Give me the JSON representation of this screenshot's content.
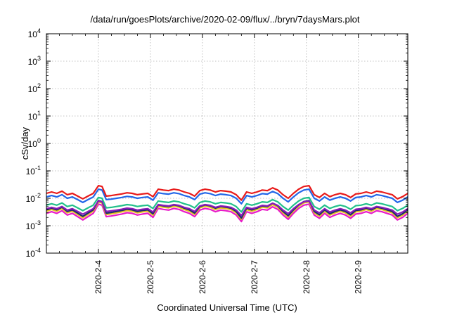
{
  "chart_data": {
    "type": "line",
    "title": "/data/run/goesPlots/archive/2020-02-09/flux/../bryn/7daysMars.plot",
    "xlabel": "Coordinated Universal Time (UTC)",
    "ylabel": "cSv/day",
    "yscale": "log",
    "ylim": [
      0.0001,
      10000
    ],
    "xlim_days": [
      3.0,
      9.95
    ],
    "x_tick_labels": [
      "2020-2-4",
      "2020-2-5",
      "2020-2-6",
      "2020-2-7",
      "2020-2-8",
      "2020-2-9"
    ],
    "x_ticks": [
      4,
      5,
      6,
      7,
      8,
      9
    ],
    "y_tick_labels": [
      {
        "base": "10",
        "exp": "-4",
        "value": -4
      },
      {
        "base": "10",
        "exp": "-3",
        "value": -3
      },
      {
        "base": "10",
        "exp": "-2",
        "value": -2
      },
      {
        "base": "10",
        "exp": "-1",
        "value": -1
      },
      {
        "base": "10",
        "exp": "0",
        "value": 0
      },
      {
        "base": "10",
        "exp": "1",
        "value": 1
      },
      {
        "base": "10",
        "exp": "2",
        "value": 2
      },
      {
        "base": "10",
        "exp": "3",
        "value": 3
      },
      {
        "base": "10",
        "exp": "4",
        "value": 4
      }
    ],
    "grid": true,
    "series_shape": {
      "x": [
        3.0,
        3.1,
        3.2,
        3.3,
        3.4,
        3.5,
        3.6,
        3.7,
        3.8,
        3.9,
        4.0,
        4.07,
        4.15,
        4.25,
        4.35,
        4.45,
        4.55,
        4.65,
        4.75,
        4.85,
        4.95,
        5.05,
        5.15,
        5.25,
        5.35,
        5.45,
        5.55,
        5.65,
        5.75,
        5.85,
        5.95,
        6.05,
        6.15,
        6.25,
        6.35,
        6.45,
        6.55,
        6.65,
        6.75,
        6.85,
        6.95,
        7.05,
        7.15,
        7.25,
        7.35,
        7.45,
        7.55,
        7.65,
        7.75,
        7.85,
        7.95,
        8.05,
        8.15,
        8.25,
        8.35,
        8.45,
        8.55,
        8.65,
        8.75,
        8.85,
        8.95,
        9.05,
        9.15,
        9.25,
        9.35,
        9.45,
        9.55,
        9.65,
        9.75,
        9.85,
        9.95
      ],
      "rel": [
        0.0,
        0.05,
        0.0,
        0.08,
        -0.05,
        0.0,
        -0.1,
        -0.2,
        -0.1,
        0.0,
        0.28,
        0.25,
        -0.1,
        -0.08,
        -0.05,
        -0.02,
        0.02,
        0.0,
        -0.05,
        -0.02,
        0.0,
        -0.12,
        0.15,
        0.12,
        0.1,
        0.15,
        0.12,
        0.05,
        0.0,
        -0.1,
        0.1,
        0.15,
        0.12,
        0.05,
        0.1,
        0.08,
        0.05,
        -0.05,
        -0.25,
        0.05,
        0.0,
        0.05,
        0.12,
        0.1,
        0.2,
        0.12,
        -0.05,
        -0.18,
        0.0,
        0.15,
        0.25,
        0.28,
        -0.05,
        -0.15,
        0.0,
        -0.12,
        -0.05,
        0.0,
        -0.05,
        -0.15,
        -0.02,
        0.0,
        0.05,
        0.0,
        0.08,
        0.05,
        0.0,
        -0.05,
        -0.2,
        -0.12,
        0.0
      ]
    },
    "series": [
      {
        "color": "#e81a1a",
        "base_log10": -1.82
      },
      {
        "color": "#2266e8",
        "base_log10": -1.95
      },
      {
        "color": "#22c08a",
        "base_log10": -2.25
      },
      {
        "color": "#8a1ab8",
        "base_log10": -2.38
      },
      {
        "color": "#1a2a70",
        "base_log10": -2.42
      },
      {
        "color": "#e8c020",
        "base_log10": -2.47
      },
      {
        "color": "#e81ac8",
        "base_log10": -2.55
      }
    ]
  }
}
